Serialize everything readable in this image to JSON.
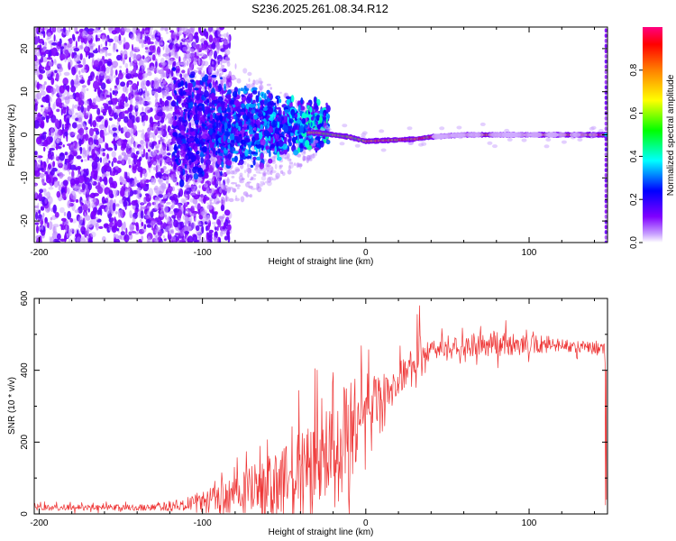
{
  "title": "S236.2025.261.08.34.R12",
  "chart_data": [
    {
      "type": "heatmap",
      "xlabel": "Height of straight line (km)",
      "ylabel": "Frequency (Hz)",
      "xlim": [
        -203,
        148
      ],
      "ylim": [
        -25,
        25
      ],
      "xticks": [
        -200,
        -100,
        0,
        100
      ],
      "yticks": [
        -20,
        -10,
        0,
        10,
        20
      ],
      "colorbar": {
        "label": "Normalized spectral amplitude",
        "range": [
          0,
          1
        ],
        "ticks": [
          "0.0",
          "0.2",
          "0.4",
          "0.6",
          "0.8"
        ],
        "colormap": [
          "#ffffff",
          "#8000ff",
          "#0000ff",
          "#00ffff",
          "#00ff00",
          "#ffff00",
          "#ff8000",
          "#ff0000",
          "#ff0080"
        ]
      },
      "ridge": [
        {
          "x": -30,
          "f": 0.5
        },
        {
          "x": -10,
          "f": -0.5
        },
        {
          "x": 0,
          "f": -1.5
        },
        {
          "x": 30,
          "f": -1.0
        },
        {
          "x": 40,
          "f": -0.5
        },
        {
          "x": 60,
          "f": 0.0
        },
        {
          "x": 100,
          "f": 0.0
        },
        {
          "x": 148,
          "f": 0.0
        }
      ]
    },
    {
      "type": "line",
      "xlabel": "Height of straight line (km)",
      "ylabel": "SNR (10 * v/v)",
      "xlim": [
        -203,
        148
      ],
      "ylim": [
        0,
        600
      ],
      "xticks": [
        -200,
        -100,
        0,
        100
      ],
      "yticks": [
        0,
        200,
        400,
        600
      ],
      "color": "#ee3333",
      "envelope": [
        {
          "x": -203,
          "base": 18,
          "spread": 12
        },
        {
          "x": -130,
          "base": 18,
          "spread": 12
        },
        {
          "x": -110,
          "base": 25,
          "spread": 30
        },
        {
          "x": -80,
          "base": 55,
          "spread": 80
        },
        {
          "x": -50,
          "base": 90,
          "spread": 140
        },
        {
          "x": -25,
          "base": 140,
          "spread": 220
        },
        {
          "x": -10,
          "base": 220,
          "spread": 220
        },
        {
          "x": 0,
          "base": 300,
          "spread": 140
        },
        {
          "x": 10,
          "base": 330,
          "spread": 80
        },
        {
          "x": 25,
          "base": 400,
          "spread": 60
        },
        {
          "x": 40,
          "base": 465,
          "spread": 40
        },
        {
          "x": 80,
          "base": 475,
          "spread": 50
        },
        {
          "x": 120,
          "base": 470,
          "spread": 30
        },
        {
          "x": 146,
          "base": 460,
          "spread": 20
        }
      ]
    }
  ]
}
